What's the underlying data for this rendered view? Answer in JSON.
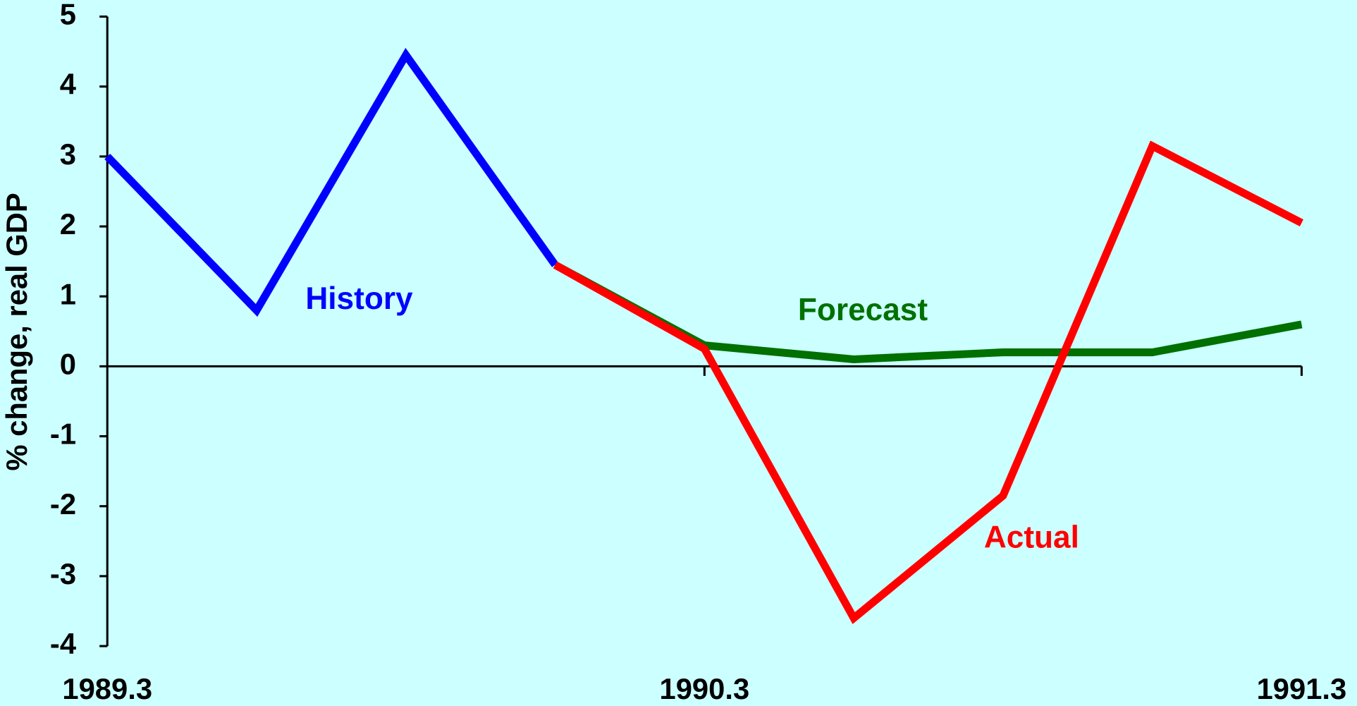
{
  "chart_data": {
    "type": "line",
    "y_label": "% change, real GDP",
    "categories": [
      "1989.3",
      null,
      null,
      null,
      "1990.3",
      null,
      null,
      null,
      "1991.3"
    ],
    "series": [
      {
        "name": "History",
        "color": "#0000ff",
        "values": [
          3.0,
          0.8,
          4.45,
          1.45,
          null,
          null,
          null,
          null,
          null
        ]
      },
      {
        "name": "Forecast",
        "color": "#007000",
        "values": [
          null,
          null,
          null,
          1.45,
          0.3,
          0.1,
          0.2,
          0.2,
          0.6
        ]
      },
      {
        "name": "Actual",
        "color": "#ff0000",
        "values": [
          null,
          null,
          null,
          1.45,
          0.25,
          -3.6,
          -1.85,
          3.15,
          2.05
        ]
      }
    ],
    "ylim": [
      -4,
      5
    ],
    "yticks": [
      -4,
      -3,
      -2,
      -1,
      0,
      1,
      2,
      3,
      4,
      5
    ],
    "background": "#ccffff"
  }
}
